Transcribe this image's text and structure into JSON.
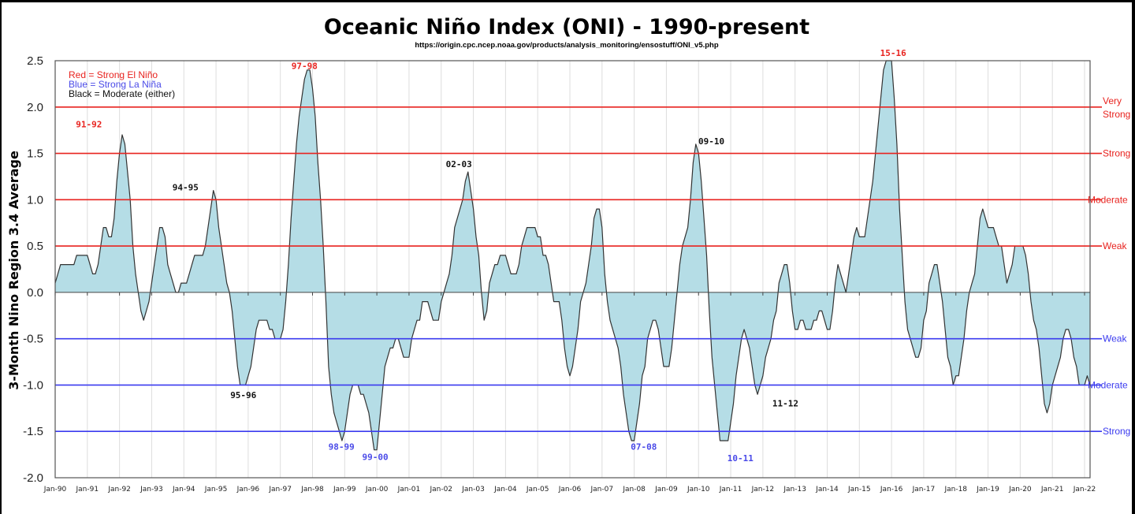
{
  "chart_data": {
    "type": "area",
    "title": "Oceanic Niño Index (ONI) - 1990-present",
    "subtitle": "https://origin.cpc.ncep.noaa.gov/products/analysis_monitoring/ensostuff/ONI_v5.php",
    "xlabel": "",
    "ylabel": "3-Month Nino Region 3.4 Average",
    "ylim": [
      -2.0,
      2.5
    ],
    "yticks": [
      "2.5",
      "2.0",
      "1.5",
      "1.0",
      "0.5",
      "0.0",
      "-0.5",
      "-1.0",
      "-1.5",
      "-2.0"
    ],
    "ytick_values": [
      2.5,
      2.0,
      1.5,
      1.0,
      0.5,
      0.0,
      -0.5,
      -1.0,
      -1.5,
      -2.0
    ],
    "xticks": [
      "Jan-90",
      "Jan-91",
      "Jan-92",
      "Jan-93",
      "Jan-94",
      "Jan-95",
      "Jan-96",
      "Jan-97",
      "Jan-98",
      "Jan-99",
      "Jan-00",
      "Jan-01",
      "Jan-02",
      "Jan-03",
      "Jan-04",
      "Jan-05",
      "Jan-06",
      "Jan-07",
      "Jan-08",
      "Jan-09",
      "Jan-10",
      "Jan-11",
      "Jan-12",
      "Jan-13",
      "Jan-14",
      "Jan-15",
      "Jan-16",
      "Jan-17",
      "Jan-18",
      "Jan-19",
      "Jan-20",
      "Jan-21",
      "Jan-22"
    ],
    "x_start_year": 1990,
    "x_end_year": 2022,
    "x_end_month_fraction": 0.18,
    "grid": "vertical",
    "fill_color": "#b5dde6",
    "line_color": "#333333",
    "series": [
      {
        "name": "ONI (monthly, 3-month running mean)",
        "start": "1990-01",
        "values": [
          0.1,
          0.2,
          0.3,
          0.3,
          0.3,
          0.3,
          0.3,
          0.3,
          0.4,
          0.4,
          0.4,
          0.4,
          0.4,
          0.3,
          0.2,
          0.2,
          0.3,
          0.5,
          0.7,
          0.7,
          0.6,
          0.6,
          0.8,
          1.2,
          1.5,
          1.7,
          1.6,
          1.3,
          1.0,
          0.5,
          0.2,
          0.0,
          -0.2,
          -0.3,
          -0.2,
          -0.1,
          0.1,
          0.3,
          0.5,
          0.7,
          0.7,
          0.6,
          0.3,
          0.2,
          0.1,
          0.0,
          0.0,
          0.1,
          0.1,
          0.1,
          0.2,
          0.3,
          0.4,
          0.4,
          0.4,
          0.4,
          0.5,
          0.7,
          0.9,
          1.1,
          1.0,
          0.7,
          0.5,
          0.3,
          0.1,
          0.0,
          -0.2,
          -0.5,
          -0.8,
          -1.0,
          -1.0,
          -1.0,
          -0.9,
          -0.8,
          -0.6,
          -0.4,
          -0.3,
          -0.3,
          -0.3,
          -0.3,
          -0.4,
          -0.4,
          -0.5,
          -0.5,
          -0.5,
          -0.4,
          -0.1,
          0.3,
          0.8,
          1.2,
          1.6,
          1.9,
          2.1,
          2.3,
          2.4,
          2.4,
          2.2,
          1.9,
          1.4,
          1.0,
          0.5,
          -0.1,
          -0.8,
          -1.1,
          -1.3,
          -1.4,
          -1.5,
          -1.6,
          -1.5,
          -1.3,
          -1.1,
          -1.0,
          -1.0,
          -1.0,
          -1.1,
          -1.1,
          -1.2,
          -1.3,
          -1.5,
          -1.7,
          -1.7,
          -1.4,
          -1.1,
          -0.8,
          -0.7,
          -0.6,
          -0.6,
          -0.5,
          -0.5,
          -0.6,
          -0.7,
          -0.7,
          -0.7,
          -0.5,
          -0.4,
          -0.3,
          -0.3,
          -0.1,
          -0.1,
          -0.1,
          -0.2,
          -0.3,
          -0.3,
          -0.3,
          -0.1,
          0.0,
          0.1,
          0.2,
          0.4,
          0.7,
          0.8,
          0.9,
          1.0,
          1.2,
          1.3,
          1.1,
          0.9,
          0.6,
          0.4,
          0.0,
          -0.3,
          -0.2,
          0.1,
          0.2,
          0.3,
          0.3,
          0.4,
          0.4,
          0.4,
          0.3,
          0.2,
          0.2,
          0.2,
          0.3,
          0.5,
          0.6,
          0.7,
          0.7,
          0.7,
          0.7,
          0.6,
          0.6,
          0.4,
          0.4,
          0.3,
          0.1,
          -0.1,
          -0.1,
          -0.1,
          -0.3,
          -0.6,
          -0.8,
          -0.9,
          -0.8,
          -0.6,
          -0.4,
          -0.1,
          0.0,
          0.1,
          0.3,
          0.5,
          0.8,
          0.9,
          0.9,
          0.7,
          0.2,
          -0.1,
          -0.3,
          -0.4,
          -0.5,
          -0.6,
          -0.8,
          -1.1,
          -1.3,
          -1.5,
          -1.6,
          -1.6,
          -1.4,
          -1.2,
          -0.9,
          -0.8,
          -0.5,
          -0.4,
          -0.3,
          -0.3,
          -0.4,
          -0.6,
          -0.8,
          -0.8,
          -0.8,
          -0.6,
          -0.3,
          0.0,
          0.3,
          0.5,
          0.6,
          0.7,
          1.0,
          1.4,
          1.6,
          1.5,
          1.2,
          0.8,
          0.4,
          -0.2,
          -0.7,
          -1.0,
          -1.3,
          -1.6,
          -1.6,
          -1.6,
          -1.6,
          -1.4,
          -1.2,
          -0.9,
          -0.7,
          -0.5,
          -0.4,
          -0.5,
          -0.6,
          -0.8,
          -1.0,
          -1.1,
          -1.0,
          -0.9,
          -0.7,
          -0.6,
          -0.5,
          -0.3,
          -0.2,
          0.1,
          0.2,
          0.3,
          0.3,
          0.1,
          -0.2,
          -0.4,
          -0.4,
          -0.3,
          -0.3,
          -0.4,
          -0.4,
          -0.4,
          -0.3,
          -0.3,
          -0.2,
          -0.2,
          -0.3,
          -0.4,
          -0.4,
          -0.2,
          0.1,
          0.3,
          0.2,
          0.1,
          0.0,
          0.2,
          0.4,
          0.6,
          0.7,
          0.6,
          0.6,
          0.6,
          0.8,
          1.0,
          1.2,
          1.5,
          1.8,
          2.1,
          2.4,
          2.5,
          2.6,
          2.5,
          2.1,
          1.6,
          0.9,
          0.4,
          -0.1,
          -0.4,
          -0.5,
          -0.6,
          -0.7,
          -0.7,
          -0.6,
          -0.3,
          -0.2,
          0.1,
          0.2,
          0.3,
          0.3,
          0.1,
          -0.1,
          -0.4,
          -0.7,
          -0.8,
          -1.0,
          -0.9,
          -0.9,
          -0.7,
          -0.5,
          -0.2,
          0.0,
          0.1,
          0.2,
          0.5,
          0.8,
          0.9,
          0.8,
          0.7,
          0.7,
          0.7,
          0.6,
          0.5,
          0.5,
          0.3,
          0.1,
          0.2,
          0.3,
          0.5,
          0.5,
          0.5,
          0.5,
          0.4,
          0.2,
          -0.1,
          -0.3,
          -0.4,
          -0.6,
          -0.9,
          -1.2,
          -1.3,
          -1.2,
          -1.0,
          -0.9,
          -0.8,
          -0.7,
          -0.5,
          -0.4,
          -0.4,
          -0.5,
          -0.7,
          -0.8,
          -1.0,
          -1.0,
          -1.0,
          -0.9,
          -1.0
        ]
      }
    ],
    "thresholds": [
      {
        "value": 2.0,
        "label": "Very Strong",
        "color": "#e8231f"
      },
      {
        "value": 1.5,
        "label": "Strong",
        "color": "#e8231f"
      },
      {
        "value": 1.0,
        "label": "Moderate",
        "color": "#e8231f"
      },
      {
        "value": 0.5,
        "label": "Weak",
        "color": "#e8231f"
      },
      {
        "value": -0.5,
        "label": "Weak",
        "color": "#3b3bef"
      },
      {
        "value": -1.0,
        "label": "Moderate",
        "color": "#3b3bef"
      },
      {
        "value": -1.5,
        "label": "Strong",
        "color": "#3b3bef"
      }
    ],
    "legend": {
      "placement": "top-left",
      "entries": [
        {
          "text": "Red = Strong  El Niño",
          "color": "#e8231f"
        },
        {
          "text": "Blue = Strong  La Niña",
          "color": "#4a4ae8"
        },
        {
          "text": "Black = Moderate  (either)",
          "color": "#111111"
        }
      ]
    },
    "annotations": [
      {
        "text": "91-92",
        "color": "#e8231f",
        "x_year": 1991.05,
        "y": 1.78
      },
      {
        "text": "94-95",
        "color": "#111111",
        "x_year": 1994.05,
        "y": 1.1
      },
      {
        "text": "95-96",
        "color": "#111111",
        "x_year": 1995.85,
        "y": -1.14
      },
      {
        "text": "97-98",
        "color": "#e8231f",
        "x_year": 1997.75,
        "y": 2.41
      },
      {
        "text": "98-99",
        "color": "#4a4ae8",
        "x_year": 1998.9,
        "y": -1.7
      },
      {
        "text": "99-00",
        "color": "#4a4ae8",
        "x_year": 1999.95,
        "y": -1.81
      },
      {
        "text": "02-03",
        "color": "#111111",
        "x_year": 2002.55,
        "y": 1.35
      },
      {
        "text": "07-08",
        "color": "#4a4ae8",
        "x_year": 2008.3,
        "y": -1.7
      },
      {
        "text": "09-10",
        "color": "#111111",
        "x_year": 2010.4,
        "y": 1.6
      },
      {
        "text": "10-11",
        "color": "#4a4ae8",
        "x_year": 2011.3,
        "y": -1.82
      },
      {
        "text": "11-12",
        "color": "#111111",
        "x_year": 2012.7,
        "y": -1.23
      },
      {
        "text": "15-16",
        "color": "#e8231f",
        "x_year": 2016.05,
        "y": 2.55
      }
    ]
  }
}
